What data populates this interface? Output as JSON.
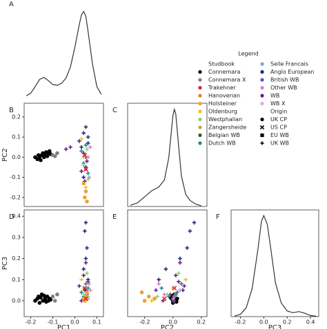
{
  "chart_data": [
    {
      "type": "line",
      "label": "A",
      "color": "#333333",
      "x": [
        -0.22,
        -0.2,
        -0.18,
        -0.16,
        -0.14,
        -0.12,
        -0.1,
        -0.08,
        -0.06,
        -0.04,
        -0.02,
        0,
        0.02,
        0.03,
        0.04,
        0.05,
        0.06,
        0.08,
        0.1,
        0.12
      ],
      "values": [
        0.1,
        0.5,
        1.5,
        2.6,
        2.9,
        2.4,
        1.8,
        1.7,
        2.0,
        2.8,
        4.5,
        7.5,
        11,
        12.5,
        13,
        12.3,
        10,
        5,
        1.5,
        0.3
      ],
      "xlim": [
        -0.23,
        0.13
      ],
      "ylim": [
        0,
        13.5
      ]
    },
    {
      "type": "scatter",
      "label": "B",
      "ylabel": "PC2",
      "xlim": [
        -0.23,
        0.13
      ],
      "ylim": [
        -0.245,
        0.268
      ],
      "yticks": [
        -0.2,
        -0.1,
        {
          "value": 0,
          "label": "0.0"
        },
        0.1,
        0.2
      ],
      "series": [
        {
          "color": "#000000",
          "marker": "circle",
          "x": [
            -0.18,
            -0.17,
            -0.165,
            -0.16,
            -0.155,
            -0.15,
            -0.145,
            -0.14,
            -0.135,
            -0.13,
            -0.125,
            -0.12,
            -0.115,
            -0.11
          ],
          "y": [
            0.0,
            -0.01,
            0.01,
            0.0,
            -0.015,
            0.01,
            0.02,
            0.0,
            0.015,
            0.025,
            0.005,
            0.02,
            0.03,
            0.015
          ]
        },
        {
          "color": "#808080",
          "marker": "circle",
          "x": [
            -0.1,
            -0.09,
            -0.08
          ],
          "y": [
            0.01,
            0.005,
            0.02
          ]
        },
        {
          "color": "#1f2a6e",
          "marker": "plus",
          "x": [
            0.05,
            0.04,
            0.06,
            0.03,
            0.05,
            0.04,
            0.06,
            0.05
          ],
          "y": [
            0.15,
            0.12,
            0.1,
            0.05,
            -0.05,
            -0.1,
            0.07,
            0.0
          ]
        },
        {
          "color": "#6a1b8a",
          "marker": "plus",
          "x": [
            0.02,
            0.04,
            0.055,
            0.03,
            0.045,
            -0.02,
            -0.04
          ],
          "y": [
            0.08,
            0.02,
            -0.02,
            -0.07,
            -0.12,
            0.05,
            0.04
          ]
        },
        {
          "color": "#1a8a8a",
          "marker": "plus",
          "x": [
            0.03,
            0.05,
            0.04,
            0.06
          ],
          "y": [
            0.03,
            0.06,
            -0.03,
            -0.08
          ]
        },
        {
          "color": "#e07ad0",
          "marker": "plus",
          "x": [
            0.06,
            0.07,
            0.05,
            0.065
          ],
          "y": [
            0.0,
            0.05,
            -0.06,
            -0.1
          ]
        },
        {
          "color": "#f0a030",
          "marker": "circle",
          "x": [
            0.045,
            0.05,
            0.04,
            0.055
          ],
          "y": [
            -0.2,
            -0.17,
            -0.13,
            -0.22
          ]
        },
        {
          "color": "#f1c40f",
          "marker": "plus",
          "x": [
            0.03,
            0.05,
            0.04
          ],
          "y": [
            0.09,
            -0.15,
            0.0
          ]
        },
        {
          "color": "#90d070",
          "marker": "plus",
          "x": [
            0.04,
            0.055,
            0.06
          ],
          "y": [
            -0.04,
            0.04,
            -0.11
          ]
        },
        {
          "color": "#d62728",
          "marker": "xmark",
          "x": [
            0.045,
            0.05
          ],
          "y": [
            0.01,
            -0.06
          ]
        }
      ]
    },
    {
      "type": "line",
      "label": "C",
      "color": "#333333",
      "x": [
        -0.3,
        -0.25,
        -0.2,
        -0.15,
        -0.1,
        -0.06,
        -0.03,
        0,
        0.01,
        0.02,
        0.04,
        0.06,
        0.09,
        0.12,
        0.16,
        0.2
      ],
      "values": [
        0.1,
        0.3,
        0.8,
        1.3,
        1.6,
        2.2,
        4,
        7.5,
        8,
        7.6,
        5,
        2.5,
        1,
        0.5,
        0.2,
        0.05
      ],
      "xlim": [
        -0.32,
        0.24
      ],
      "ylim": [
        0,
        8.5
      ]
    },
    {
      "type": "scatter",
      "label": "D",
      "xlabel": "PC1",
      "ylabel": "PC3",
      "xlim": [
        -0.23,
        0.13
      ],
      "ylim": [
        -0.075,
        0.43
      ],
      "xticks": [
        -0.2,
        -0.1,
        {
          "value": 0,
          "label": "0.0"
        },
        0.1
      ],
      "yticks": [
        {
          "value": 0,
          "label": "0.0"
        },
        0.1,
        0.2,
        0.3,
        0.4
      ],
      "series": [
        {
          "color": "#000000",
          "marker": "circle",
          "x": [
            -0.18,
            -0.17,
            -0.165,
            -0.16,
            -0.155,
            -0.15,
            -0.145,
            -0.14,
            -0.135,
            -0.13,
            -0.125,
            -0.12,
            -0.115,
            -0.11
          ],
          "y": [
            0.0,
            0.01,
            0.02,
            -0.01,
            0.015,
            0.03,
            0.0,
            0.025,
            0.01,
            -0.005,
            0.02,
            0.0,
            0.01,
            0.005
          ]
        },
        {
          "color": "#808080",
          "marker": "circle",
          "x": [
            -0.1,
            -0.09,
            -0.08
          ],
          "y": [
            0.02,
            0.0,
            0.03
          ]
        },
        {
          "color": "#1f2a6e",
          "marker": "plus",
          "x": [
            0.05,
            0.045,
            0.055,
            0.05,
            0.04,
            0.06,
            0.05,
            0.045
          ],
          "y": [
            0.37,
            0.33,
            0.25,
            0.2,
            0.15,
            0.1,
            0.05,
            0.0
          ]
        },
        {
          "color": "#6a1b8a",
          "marker": "plus",
          "x": [
            0.02,
            0.04,
            0.055,
            0.03,
            0.045,
            0.05,
            0.06
          ],
          "y": [
            0.07,
            0.12,
            0.03,
            0.0,
            0.05,
            0.18,
            0.09
          ]
        },
        {
          "color": "#1a8a8a",
          "marker": "plus",
          "x": [
            0.03,
            0.05,
            0.04,
            0.06
          ],
          "y": [
            0.04,
            0.08,
            0.02,
            0.06
          ]
        },
        {
          "color": "#e07ad0",
          "marker": "plus",
          "x": [
            0.06,
            0.07,
            0.05,
            0.065
          ],
          "y": [
            0.01,
            0.05,
            0.03,
            0.08
          ]
        },
        {
          "color": "#f0a030",
          "marker": "circle",
          "x": [
            0.045,
            0.05,
            0.04,
            0.055
          ],
          "y": [
            0.0,
            0.02,
            0.01,
            0.04
          ]
        },
        {
          "color": "#f1c40f",
          "marker": "plus",
          "x": [
            0.03,
            0.05,
            0.04
          ],
          "y": [
            0.1,
            0.0,
            0.06
          ]
        },
        {
          "color": "#90d070",
          "marker": "plus",
          "x": [
            0.04,
            0.055,
            0.06
          ],
          "y": [
            0.03,
            0.13,
            0.02
          ]
        },
        {
          "color": "#d62728",
          "marker": "xmark",
          "x": [
            0.045,
            0.05
          ],
          "y": [
            0.06,
            0.01
          ]
        }
      ]
    },
    {
      "type": "scatter",
      "label": "E",
      "xlabel": "PC2",
      "xlim": [
        -0.32,
        0.24
      ],
      "ylim": [
        -0.075,
        0.43
      ],
      "xticks": [
        -0.2,
        {
          "value": 0,
          "label": "0.0"
        },
        0.2
      ],
      "series": [
        {
          "color": "#000000",
          "marker": "circle",
          "x": [
            0.0,
            -0.01,
            0.01,
            0.0,
            -0.015,
            0.01,
            0.02,
            0.0,
            0.015,
            0.025,
            0.005,
            0.02,
            0.03,
            0.015
          ],
          "y": [
            0.0,
            0.01,
            0.02,
            -0.01,
            0.015,
            0.03,
            0.0,
            0.025,
            0.01,
            -0.005,
            0.02,
            0.0,
            0.01,
            0.005
          ]
        },
        {
          "color": "#808080",
          "marker": "circle",
          "x": [
            0.01,
            0.005,
            0.02
          ],
          "y": [
            0.02,
            0.0,
            0.03
          ]
        },
        {
          "color": "#1f2a6e",
          "marker": "plus",
          "x": [
            0.15,
            0.12,
            0.1,
            0.05,
            -0.05,
            -0.1,
            0.07,
            0.0
          ],
          "y": [
            0.37,
            0.33,
            0.25,
            0.2,
            0.15,
            0.1,
            0.05,
            0.0
          ]
        },
        {
          "color": "#6a1b8a",
          "marker": "plus",
          "x": [
            0.08,
            0.02,
            -0.02,
            -0.07,
            -0.12,
            0.05,
            0.04
          ],
          "y": [
            0.07,
            0.12,
            0.03,
            0.0,
            0.05,
            0.18,
            0.09
          ]
        },
        {
          "color": "#1a8a8a",
          "marker": "plus",
          "x": [
            0.03,
            0.06,
            -0.03,
            -0.08
          ],
          "y": [
            0.04,
            0.08,
            0.02,
            0.06
          ]
        },
        {
          "color": "#e07ad0",
          "marker": "plus",
          "x": [
            0.0,
            0.05,
            -0.06,
            -0.1
          ],
          "y": [
            0.01,
            0.05,
            0.03,
            0.08
          ]
        },
        {
          "color": "#f0a030",
          "marker": "circle",
          "x": [
            -0.2,
            -0.17,
            -0.13,
            -0.22
          ],
          "y": [
            0.0,
            0.02,
            0.01,
            0.04
          ]
        },
        {
          "color": "#f1c40f",
          "marker": "plus",
          "x": [
            0.09,
            -0.15,
            0.0
          ],
          "y": [
            0.1,
            0.0,
            0.06
          ]
        },
        {
          "color": "#90d070",
          "marker": "plus",
          "x": [
            -0.04,
            0.04,
            -0.11
          ],
          "y": [
            0.03,
            0.13,
            0.02
          ]
        },
        {
          "color": "#d62728",
          "marker": "xmark",
          "x": [
            0.01,
            -0.06
          ],
          "y": [
            0.06,
            0.01
          ]
        }
      ]
    },
    {
      "type": "line",
      "label": "F",
      "xlabel": "PC3",
      "color": "#333333",
      "x": [
        -0.25,
        -0.2,
        -0.15,
        -0.1,
        -0.05,
        -0.02,
        0,
        0.03,
        0.06,
        0.1,
        0.15,
        0.2,
        0.25,
        0.3,
        0.35,
        0.4,
        0.45
      ],
      "values": [
        0.05,
        0.2,
        0.8,
        2.5,
        6,
        8.5,
        9,
        8.2,
        6,
        3,
        1.2,
        0.5,
        0.35,
        0.45,
        0.3,
        0.1,
        0.03
      ],
      "xlim": [
        -0.28,
        0.47
      ],
      "ylim": [
        0,
        9.5
      ],
      "xticks": [
        -0.2,
        {
          "value": 0,
          "label": "0.0"
        },
        0.2,
        0.4
      ]
    }
  ],
  "legend": {
    "title": "Legend",
    "studbook_title": "Studbook",
    "studbooks": [
      {
        "name": "Connemara",
        "color": "#000000"
      },
      {
        "name": "Connemara X",
        "color": "#808080"
      },
      {
        "name": "Trakehner",
        "color": "#d62728"
      },
      {
        "name": "Hanoverian",
        "color": "#e67e22"
      },
      {
        "name": "Holsteiner",
        "color": "#f0a030"
      },
      {
        "name": "Oldenburg",
        "color": "#f1c40f"
      },
      {
        "name": "Westphalian",
        "color": "#90d070"
      },
      {
        "name": "Zangersheide",
        "color": "#b0b040"
      },
      {
        "name": "Belgian WB",
        "color": "#2e5e2e"
      },
      {
        "name": "Dutch WB",
        "color": "#1a8a8a"
      },
      {
        "name": "Selle Francais",
        "color": "#6fa8dc"
      },
      {
        "name": "Anglo European",
        "color": "#1f2a6e"
      },
      {
        "name": "British WB",
        "color": "#5b4fcf"
      },
      {
        "name": "Other WB",
        "color": "#e07ad0"
      },
      {
        "name": "WB",
        "color": "#6a1b8a"
      },
      {
        "name": "WB X",
        "color": "#d8a8e8"
      }
    ],
    "origin_title": "Origin",
    "origins": [
      {
        "name": "UK CP",
        "marker": "circle"
      },
      {
        "name": "US CP",
        "marker": "xmark"
      },
      {
        "name": "EU WB",
        "marker": "square"
      },
      {
        "name": "UK WB",
        "marker": "plus"
      }
    ]
  }
}
